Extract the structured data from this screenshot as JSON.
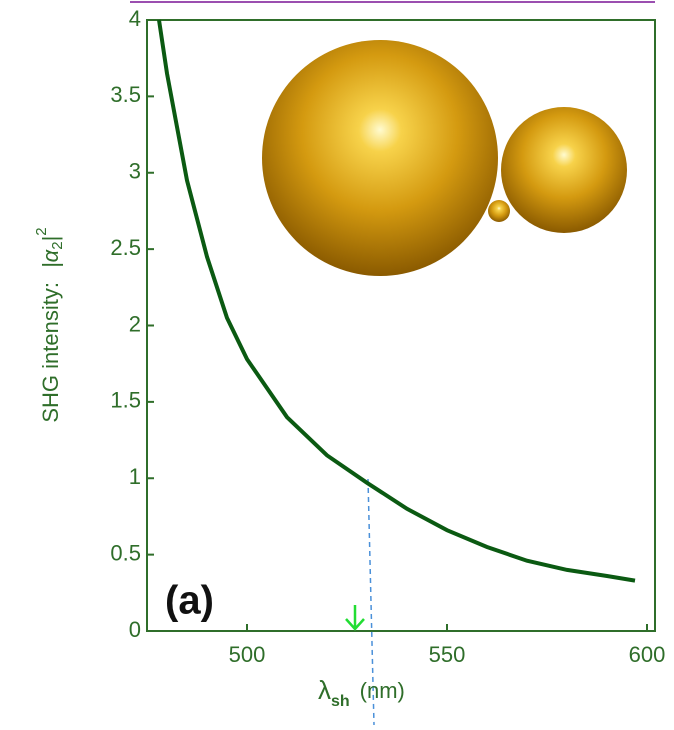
{
  "chart_data": {
    "type": "line",
    "ylabel": {
      "text": "SHG intensity:",
      "symbol": "|α",
      "subscript": "2",
      "close": "|",
      "superscript": "2"
    },
    "xlabel": {
      "symbol": "λ",
      "subscript": "sh",
      "unit": "(nm)"
    },
    "annotation": "(a)",
    "arrow_at": 527,
    "x": [
      478,
      480,
      485,
      490,
      495,
      500,
      510,
      520,
      530,
      540,
      550,
      560,
      570,
      580,
      590,
      597
    ],
    "series": [
      {
        "color": "#0b5a12",
        "values": [
          4.0,
          3.65,
          2.95,
          2.45,
          2.05,
          1.78,
          1.4,
          1.15,
          0.97,
          0.8,
          0.66,
          0.55,
          0.46,
          0.4,
          0.36,
          0.33
        ]
      }
    ],
    "xlim": [
      475,
      602
    ],
    "xticks": [
      500,
      550,
      600
    ],
    "ylim": [
      0,
      4
    ],
    "yticks": [
      0,
      0.5,
      1,
      1.5,
      2,
      2.5,
      3,
      3.5,
      4
    ]
  }
}
